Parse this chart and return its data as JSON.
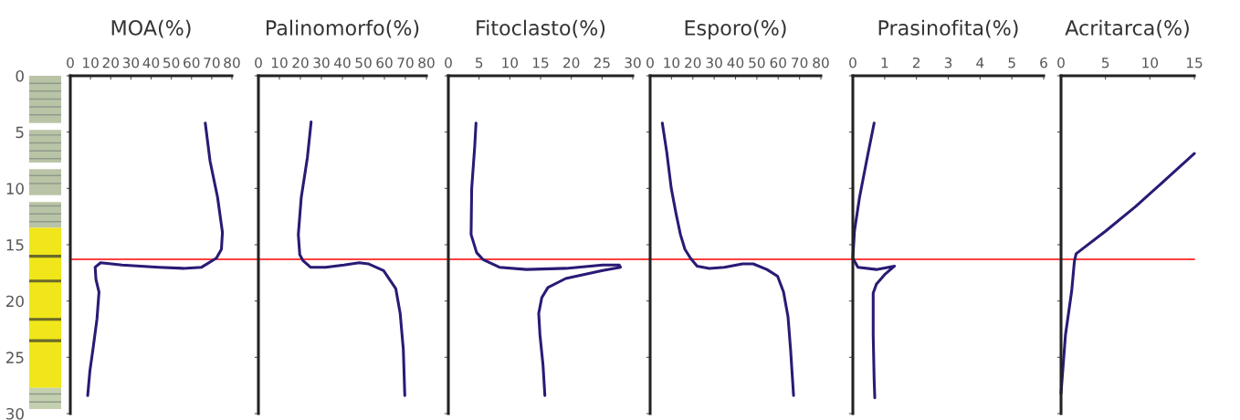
{
  "chart_data": [
    {
      "type": "line",
      "title": "MOA(%)",
      "xlim": [
        0,
        80
      ],
      "xticks": [
        0,
        10,
        20,
        30,
        40,
        50,
        60,
        70,
        80
      ],
      "ylim": [
        30,
        0
      ],
      "yticks": [
        0,
        5,
        10,
        15,
        20,
        25,
        30
      ],
      "grid": false,
      "legend": false,
      "ref_lines": [
        {
          "axis": "y",
          "value": 16.3,
          "color": "#ff0000"
        }
      ],
      "series": [
        {
          "color": "#2b1a75",
          "values": [
            4.2,
            7.6,
            10.8,
            13.9,
            15.4,
            16.2,
            17.0,
            17.1,
            17.0,
            16.8,
            16.6,
            17.0,
            18.1,
            19.2,
            21.6,
            24.3,
            26.2,
            28.4
          ],
          "x": [
            66.8,
            69.2,
            72.9,
            75.3,
            74.8,
            72.3,
            65,
            55.9,
            43.8,
            25.6,
            15,
            12.3,
            12.7,
            14.2,
            13.2,
            11.2,
            9.7,
            8.6
          ]
        }
      ]
    },
    {
      "type": "line",
      "title": "Palinomorfo(%)",
      "xlim": [
        0,
        80
      ],
      "xticks": [
        0,
        10,
        20,
        30,
        40,
        50,
        60,
        70,
        80
      ],
      "ylim": [
        30,
        0
      ],
      "yticks": [
        0,
        5,
        10,
        15,
        20,
        25,
        30
      ],
      "tick_labels": "x",
      "grid": false,
      "legend": false,
      "ref_lines": [
        {
          "axis": "y",
          "value": 16.3,
          "color": "#ff0000"
        }
      ],
      "series": [
        {
          "color": "#2b1a75",
          "values": [
            4.1,
            7.3,
            10.8,
            14.1,
            15.9,
            16.4,
            17.0,
            17.0,
            16.8,
            16.6,
            16.7,
            17.3,
            18.9,
            21.1,
            24.3,
            28.4
          ],
          "x": [
            25.1,
            23.3,
            20.4,
            19,
            19.7,
            21.2,
            24.8,
            32,
            40.7,
            48,
            52.3,
            59.6,
            65.4,
            67.5,
            69,
            69.7
          ]
        }
      ]
    },
    {
      "type": "line",
      "title": "Fitoclasto(%)",
      "xlim": [
        0,
        30
      ],
      "xticks": [
        0,
        5,
        10,
        15,
        20,
        25,
        30
      ],
      "ylim": [
        30,
        0
      ],
      "yticks": [
        0,
        5,
        10,
        15,
        20,
        25,
        30
      ],
      "tick_labels": "x",
      "grid": false,
      "legend": false,
      "ref_lines": [
        {
          "axis": "y",
          "value": 16.3,
          "color": "#ff0000"
        }
      ],
      "series": [
        {
          "color": "#2b1a75",
          "values": [
            4.2,
            6.2,
            10,
            14.1,
            15.7,
            16.3,
            17.0,
            17.2,
            17.1,
            16.8,
            16.8,
            17.0,
            17.3,
            18.0,
            18.8,
            19.7,
            21.1,
            23,
            25.7,
            28.4
          ],
          "x": [
            4.5,
            4.3,
            3.8,
            3.7,
            4.6,
            5.6,
            8.3,
            12.7,
            19.1,
            25.1,
            27.8,
            28,
            25.1,
            19.1,
            16.2,
            15.2,
            14.7,
            14.9,
            15.4,
            15.7
          ]
        }
      ]
    },
    {
      "type": "line",
      "title": "Esporo(%)",
      "xlim": [
        0,
        80
      ],
      "xticks": [
        0,
        10,
        20,
        30,
        40,
        50,
        60,
        70,
        80
      ],
      "ylim": [
        30,
        0
      ],
      "yticks": [
        0,
        5,
        10,
        15,
        20,
        25,
        30
      ],
      "tick_labels": "x",
      "grid": false,
      "legend": false,
      "ref_lines": [
        {
          "axis": "y",
          "value": 16.3,
          "color": "#ff0000"
        }
      ],
      "series": [
        {
          "color": "#2b1a75",
          "values": [
            4.2,
            6.8,
            10,
            12.2,
            14.1,
            15.4,
            16.2,
            16.9,
            17.1,
            17.0,
            16.7,
            16.7,
            17.2,
            17.8,
            19.2,
            21.4,
            24.3,
            28.4
          ],
          "x": [
            5.7,
            7.8,
            9.9,
            12.1,
            14.2,
            16.3,
            18.9,
            22,
            27.7,
            34.8,
            43.3,
            48.3,
            54.7,
            59.7,
            62.5,
            64.6,
            65.8,
            67.2
          ]
        }
      ]
    },
    {
      "type": "line",
      "title": "Prasinofita(%)",
      "xlim": [
        0,
        6
      ],
      "xticks": [
        0,
        1,
        2,
        3,
        4,
        5,
        6
      ],
      "ylim": [
        30,
        0
      ],
      "yticks": [
        0,
        5,
        10,
        15,
        20,
        25,
        30
      ],
      "tick_labels": "x",
      "grid": false,
      "legend": false,
      "ref_lines": [
        {
          "axis": "y",
          "value": 16.3,
          "color": "#ff0000"
        }
      ],
      "series": [
        {
          "color": "#2b1a75",
          "values": [
            4.2,
            7.3,
            10.8,
            13.8,
            16.2,
            17.0,
            17.2,
            16.9,
            17.6,
            18.5,
            19.3,
            23,
            27,
            28.6
          ],
          "x": [
            0.67,
            0.45,
            0.21,
            0.05,
            0,
            0.16,
            0.74,
            1.31,
            1.02,
            0.74,
            0.64,
            0.64,
            0.67,
            0.69
          ]
        }
      ]
    },
    {
      "type": "line",
      "title": "Acritarca(%)",
      "xlim": [
        0,
        15
      ],
      "xticks": [
        0,
        5,
        10,
        15
      ],
      "ylim": [
        30,
        0
      ],
      "yticks": [
        0,
        5,
        10,
        15,
        20,
        25,
        30
      ],
      "tick_labels": "x",
      "grid": false,
      "legend": false,
      "ref_lines": [
        {
          "axis": "y",
          "value": 16.3,
          "color": "#ff0000"
        }
      ],
      "series": [
        {
          "color": "#2b1a75",
          "values": [
            6.9,
            9.2,
            11.6,
            13.8,
            15.8,
            16.5,
            19.1,
            23,
            28.2
          ],
          "x": [
            15,
            11.8,
            8.4,
            5.0,
            1.7,
            1.5,
            1.2,
            0.5,
            0
          ]
        }
      ]
    }
  ]
}
